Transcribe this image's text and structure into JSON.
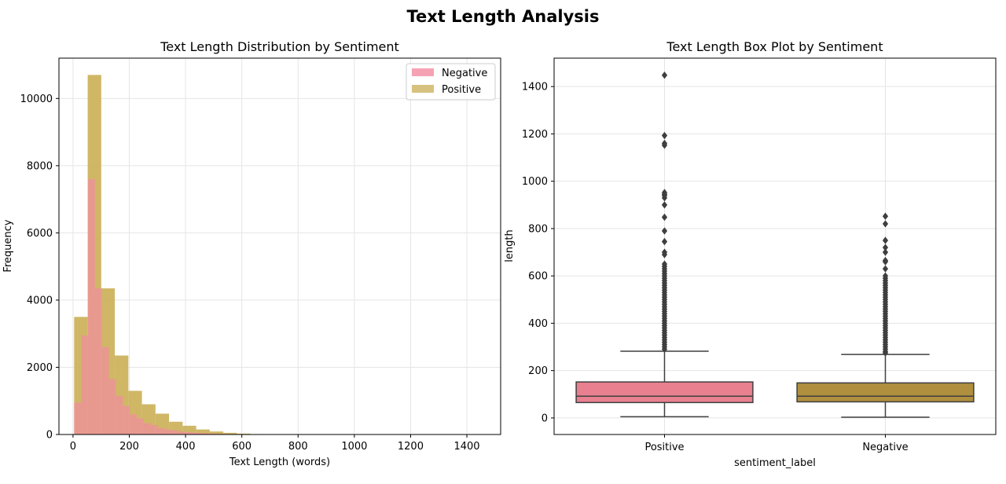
{
  "figure": {
    "title": "Text Length Analysis"
  },
  "chart_data": [
    {
      "type": "bar",
      "subtype": "histogram",
      "title": "Text Length Distribution by Sentiment",
      "xlabel": "Text Length (words)",
      "ylabel": "Frequency",
      "xlim": [
        -50,
        1520
      ],
      "ylim": [
        0,
        11200
      ],
      "xticks": [
        0,
        200,
        400,
        600,
        800,
        1000,
        1200,
        1400
      ],
      "yticks": [
        0,
        2000,
        4000,
        6000,
        8000,
        10000
      ],
      "grid": true,
      "legend_position": "top-right",
      "series": [
        {
          "name": "Negative",
          "color": "#f28ca1",
          "bin_edges": [
            4,
            28.7,
            53.4,
            78.1,
            102.8,
            127.5,
            152.2,
            176.9,
            201.6,
            226.3,
            251,
            275.7,
            300.4,
            325.1,
            349.8,
            374.5,
            399.2,
            423.9,
            448.6,
            473.3,
            498,
            522.7,
            547.4,
            572.1,
            596.8,
            621.5,
            646.2,
            670.9,
            695.6,
            720.3,
            745,
            769.7,
            794.4,
            819.1,
            843.8,
            868.5
          ],
          "values": [
            950,
            2950,
            7600,
            4350,
            2600,
            1650,
            1150,
            850,
            600,
            480,
            340,
            280,
            190,
            150,
            120,
            90,
            70,
            55,
            40,
            30,
            25,
            18,
            12,
            9,
            7,
            6,
            4,
            3,
            3,
            2,
            2,
            1,
            1,
            1,
            1
          ]
        },
        {
          "name": "Positive",
          "color": "#ccb35e",
          "bin_edges": [
            4,
            52.2,
            100.4,
            148.6,
            196.8,
            245,
            293.2,
            341.4,
            389.6,
            437.8,
            486,
            534.2,
            582.4,
            630.6,
            678.8,
            727,
            775.2,
            823.4,
            871.6,
            919.8,
            968,
            1016.2,
            1064.4,
            1112.6,
            1160.8,
            1209,
            1257.2,
            1305.4,
            1353.6,
            1401.8,
            1450
          ],
          "values": [
            3500,
            10700,
            4350,
            2350,
            1300,
            900,
            620,
            380,
            260,
            150,
            90,
            50,
            25,
            12,
            8,
            5,
            3,
            2,
            1,
            1,
            1,
            0,
            0,
            1,
            1,
            0,
            0,
            0,
            0,
            1
          ]
        }
      ]
    },
    {
      "type": "box",
      "title": "Text Length Box Plot by Sentiment",
      "xlabel": "sentiment_label",
      "ylabel": "length",
      "ylim": [
        -70,
        1520
      ],
      "yticks": [
        0,
        200,
        400,
        600,
        800,
        1000,
        1200,
        1400
      ],
      "grid": true,
      "categories": [
        "Positive",
        "Negative"
      ],
      "boxes": [
        {
          "category": "Positive",
          "color": "#e8808f",
          "whisker_low": 5,
          "q1": 65,
          "median": 92,
          "q3": 152,
          "whisker_high": 282,
          "outliers": [
            1448,
            1193,
            1160,
            1152,
            952,
            945,
            940,
            930,
            900,
            848,
            790,
            745,
            700,
            690,
            650,
            640,
            630,
            620,
            610,
            600,
            590,
            580,
            570,
            560,
            550,
            540,
            530,
            520,
            510,
            500,
            490,
            480,
            470,
            460,
            450,
            440,
            430,
            420,
            410,
            400,
            390,
            380,
            370,
            360,
            350,
            340,
            330,
            320,
            310,
            300,
            290
          ]
        },
        {
          "category": "Negative",
          "color": "#b08f3e",
          "whisker_low": 3,
          "q1": 68,
          "median": 92,
          "q3": 148,
          "whisker_high": 268,
          "outliers": [
            852,
            820,
            750,
            720,
            700,
            665,
            660,
            630,
            600,
            590,
            580,
            570,
            560,
            550,
            540,
            530,
            520,
            510,
            500,
            490,
            480,
            470,
            460,
            450,
            440,
            430,
            420,
            410,
            400,
            390,
            380,
            370,
            360,
            350,
            340,
            330,
            320,
            310,
            300,
            290,
            280,
            275
          ]
        }
      ]
    }
  ]
}
